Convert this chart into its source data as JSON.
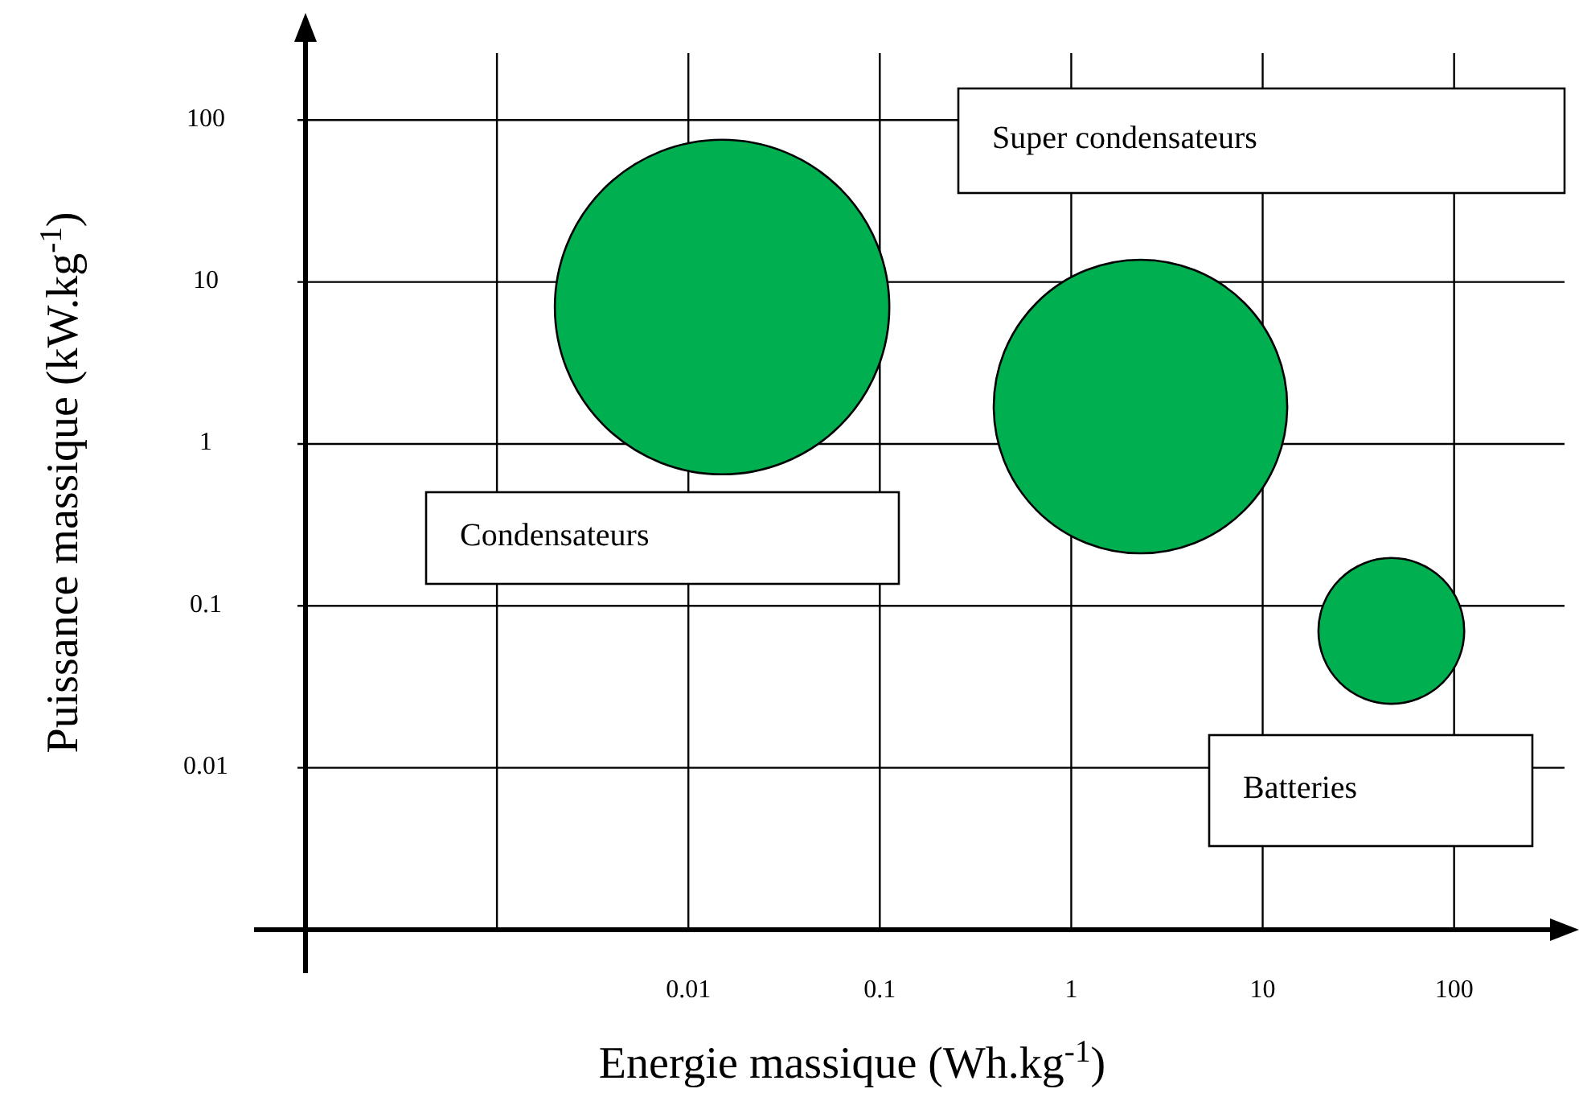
{
  "chart_data": {
    "type": "bubble",
    "xlabel": "Energie massique (Wh.kg$^{-1}$)",
    "ylabel": "Puissance massique (kW.kg$^{-1}$)",
    "log": "xy",
    "grid": true,
    "xlim": [
      0.0001,
      400
    ],
    "ylim": [
      0.001,
      400
    ],
    "xticks": [
      {
        "value": 0.001,
        "label": null
      },
      0.01,
      0.1,
      1,
      10,
      100
    ],
    "yticks": [
      0.01,
      0.1,
      1,
      10,
      100
    ],
    "series": [
      {
        "color": "#00b050",
        "x": [
          0.015,
          2.3,
          47
        ],
        "values": [
          7,
          1.7,
          0.07
        ],
        "sizes": [
          1,
          0.77,
          0.19
        ]
      }
    ],
    "annotations": [
      "Super condensateurs",
      "Condensateurs",
      "Batteries"
    ]
  }
}
